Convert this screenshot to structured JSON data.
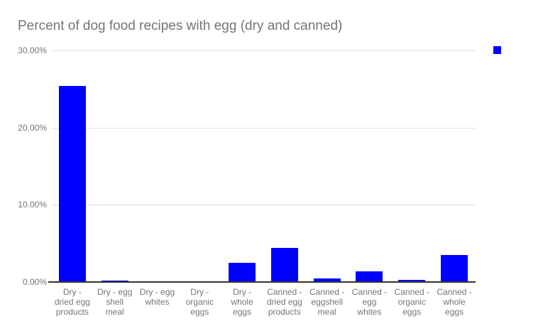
{
  "chart_data": {
    "type": "bar",
    "title": "Percent of dog food recipes with egg (dry and canned)",
    "xlabel": "",
    "ylabel": "",
    "categories": [
      "Dry - dried egg products",
      "Dry - egg shell meal",
      "Dry - egg whites",
      "Dry - organic eggs",
      "Dry - whole eggs",
      "Canned - dried egg products",
      "Canned - eggshell meal",
      "Canned - egg whites",
      "Canned - organic eggs",
      "Canned - whole eggs"
    ],
    "category_display_lines": [
      [
        "Dry -",
        "dried egg",
        "products"
      ],
      [
        "Dry - egg",
        "shell",
        "meal"
      ],
      [
        "Dry - egg",
        "whites"
      ],
      [
        "Dry -",
        "organic",
        "eggs"
      ],
      [
        "Dry -",
        "whole",
        "eggs"
      ],
      [
        "Canned -",
        "dried egg",
        "products"
      ],
      [
        "Canned -",
        "eggshell",
        "meal"
      ],
      [
        "Canned -",
        "egg",
        "whites"
      ],
      [
        "Canned -",
        "organic",
        "eggs"
      ],
      [
        "Canned -",
        "whole",
        "eggs"
      ]
    ],
    "values": [
      25.4,
      0.2,
      0.0,
      0.1,
      2.5,
      4.4,
      0.5,
      1.4,
      0.3,
      3.5
    ],
    "ylim": [
      0,
      30
    ],
    "ytick_values": [
      0,
      10,
      20,
      30
    ],
    "ytick_labels": [
      "0.00%",
      "10.00%",
      "20.00%",
      "30.00%"
    ],
    "grid": true,
    "series_color": "#0000ff",
    "gridline_color": "#e0e0e0",
    "axis_line_color": "#333333",
    "text_color": "#757575",
    "legend": {
      "position": "top-right",
      "swatch_color": "#0000ff",
      "label": ""
    }
  }
}
